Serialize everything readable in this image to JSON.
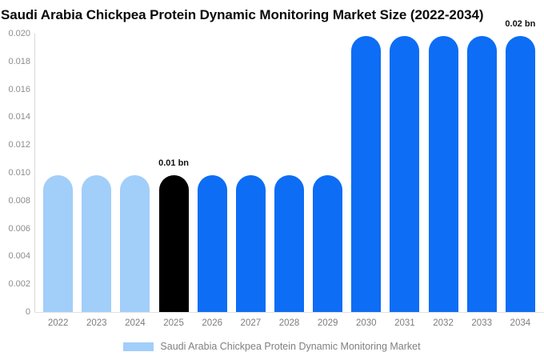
{
  "title": "Saudi Arabia Chickpea Protein Dynamic Monitoring Market Size (2022-2034)",
  "legend": {
    "label": "Saudi Arabia Chickpea Protein Dynamic Monitoring Market",
    "swatch_color": "#a2cefa"
  },
  "colors": {
    "light_blue": "#a2cefa",
    "blue": "#0d6df4",
    "black": "#000000",
    "axis_line": "#d9d9d9",
    "tick_label": "#8c8c8c",
    "annotation_text": "#111111"
  },
  "chart_data": {
    "type": "bar",
    "title": "Saudi Arabia Chickpea Protein Dynamic Monitoring Market Size (2022-2034)",
    "categories": [
      "2022",
      "2023",
      "2024",
      "2025",
      "2026",
      "2027",
      "2028",
      "2029",
      "2030",
      "2031",
      "2032",
      "2033",
      "2034"
    ],
    "values": [
      0.0098,
      0.0098,
      0.0098,
      0.0098,
      0.0098,
      0.0098,
      0.0098,
      0.0098,
      0.0198,
      0.0198,
      0.0198,
      0.0198,
      0.0198
    ],
    "bar_colors": [
      "#a2cefa",
      "#a2cefa",
      "#a2cefa",
      "#000000",
      "#0d6df4",
      "#0d6df4",
      "#0d6df4",
      "#0d6df4",
      "#0d6df4",
      "#0d6df4",
      "#0d6df4",
      "#0d6df4",
      "#0d6df4"
    ],
    "annotations": [
      {
        "category": "2025",
        "text": "0.01 bn"
      },
      {
        "category": "2034",
        "text": "0.02 bn"
      }
    ],
    "xlabel": "",
    "ylabel": "",
    "ylim": [
      0,
      0.02
    ],
    "ytick_labels": [
      "0",
      "0.002",
      "0.004",
      "0.006",
      "0.008",
      "0.010",
      "0.012",
      "0.014",
      "0.016",
      "0.018",
      "0.020"
    ],
    "grid": false,
    "legend_position": "bottom",
    "legend_entries": [
      "Saudi Arabia Chickpea Protein Dynamic Monitoring Market"
    ]
  }
}
